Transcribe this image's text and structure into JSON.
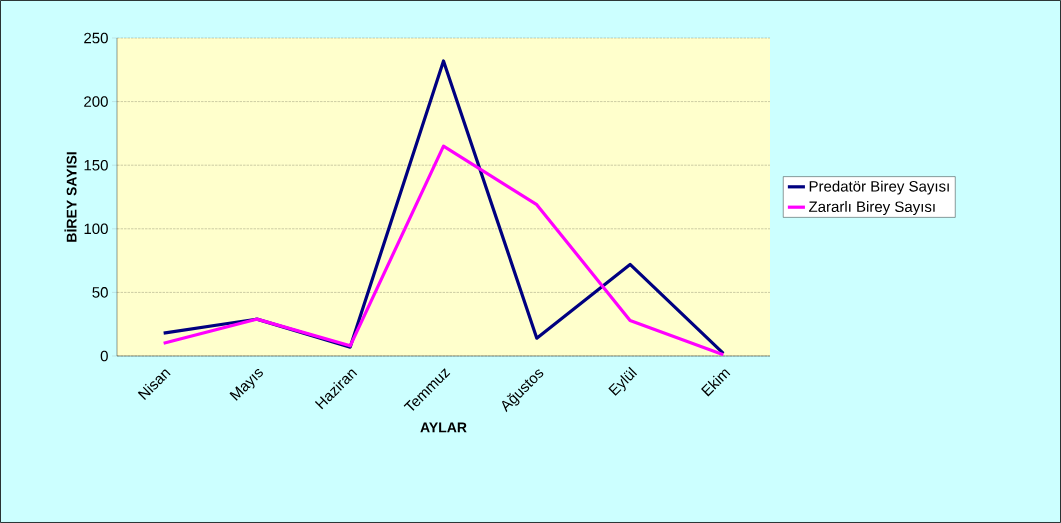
{
  "chart_data": {
    "type": "line",
    "xlabel": "AYLAR",
    "ylabel": "BİREY SAYISI",
    "categories": [
      "Nisan",
      "Mayıs",
      "Haziran",
      "Temmuz",
      "Ağustos",
      "Eylül",
      "Ekim"
    ],
    "series": [
      {
        "name": "Predatör Birey Sayısı",
        "color": "#000080",
        "values": [
          18,
          29,
          7,
          232,
          14,
          72,
          2
        ]
      },
      {
        "name": "Zararlı Birey Sayısı",
        "color": "#ff00ff",
        "values": [
          10,
          29,
          8,
          165,
          119,
          28,
          1
        ]
      }
    ],
    "ylim": [
      0,
      250
    ],
    "yticks": [
      0,
      50,
      100,
      150,
      200,
      250
    ],
    "grid": "y",
    "legend": "right",
    "marker": "none",
    "line_style": "solid"
  }
}
